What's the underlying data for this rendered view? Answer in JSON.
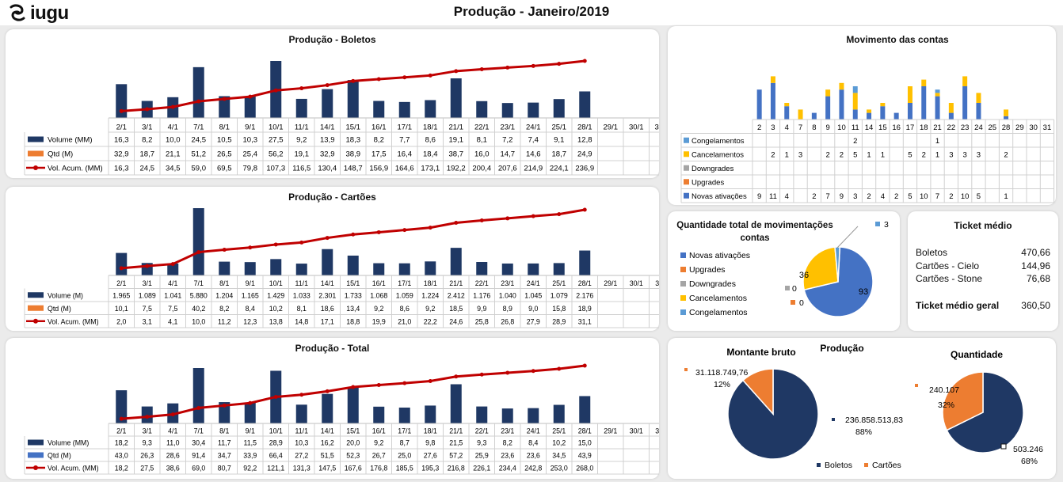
{
  "header": {
    "logo_text": "iugu",
    "title": "Produção - Janeiro/2019"
  },
  "colors": {
    "navy": "#1f3864",
    "orange": "#ed7d31",
    "red": "#c00000",
    "blue": "#4472c4",
    "gold": "#ffc000",
    "gray": "#a5a5a5",
    "sky": "#5b9bd5"
  },
  "dates": [
    "2/1",
    "3/1",
    "4/1",
    "7/1",
    "8/1",
    "9/1",
    "10/1",
    "11/1",
    "14/1",
    "15/1",
    "16/1",
    "17/1",
    "18/1",
    "21/1",
    "22/1",
    "23/1",
    "24/1",
    "25/1",
    "28/1",
    "29/1",
    "30/1",
    "31/1"
  ],
  "boletos": {
    "title": "Produção - Boletos",
    "row_labels": [
      "Volume (MM)",
      "Qtd (M)",
      "Vol. Acum. (MM)"
    ],
    "rows": [
      [
        "16,3",
        "8,2",
        "10,0",
        "24,5",
        "10,5",
        "10,3",
        "27,5",
        "9,2",
        "13,9",
        "18,3",
        "8,2",
        "7,7",
        "8,6",
        "19,1",
        "8,1",
        "7,2",
        "7,4",
        "9,1",
        "12,8"
      ],
      [
        "32,9",
        "18,7",
        "21,1",
        "51,2",
        "26,5",
        "25,4",
        "56,2",
        "19,1",
        "32,9",
        "38,9",
        "17,5",
        "16,4",
        "18,4",
        "38,7",
        "16,0",
        "14,7",
        "14,6",
        "18,7",
        "24,9"
      ],
      [
        "16,3",
        "24,5",
        "34,5",
        "59,0",
        "69,5",
        "79,8",
        "107,3",
        "116,5",
        "130,4",
        "148,7",
        "156,9",
        "164,6",
        "173,1",
        "192,2",
        "200,4",
        "207,6",
        "214,9",
        "224,1",
        "236,9"
      ]
    ]
  },
  "cartoes": {
    "title": "Produção - Cartões",
    "row_labels": [
      "Volume (M)",
      "Qtd (M)",
      "Vol. Acum. (MM)"
    ],
    "rows": [
      [
        "1.965",
        "1.089",
        "1.041",
        "5.880",
        "1.204",
        "1.165",
        "1.429",
        "1.033",
        "2.301",
        "1.733",
        "1.068",
        "1.059",
        "1.224",
        "2.412",
        "1.176",
        "1.040",
        "1.045",
        "1.079",
        "2.176"
      ],
      [
        "10,1",
        "7,5",
        "7,5",
        "40,2",
        "8,2",
        "8,4",
        "10,2",
        "8,1",
        "18,6",
        "13,4",
        "9,2",
        "8,6",
        "9,2",
        "18,5",
        "9,9",
        "8,9",
        "9,0",
        "15,8",
        "18,9"
      ],
      [
        "2,0",
        "3,1",
        "4,1",
        "10,0",
        "11,2",
        "12,3",
        "13,8",
        "14,8",
        "17,1",
        "18,8",
        "19,9",
        "21,0",
        "22,2",
        "24,6",
        "25,8",
        "26,8",
        "27,9",
        "28,9",
        "31,1"
      ]
    ]
  },
  "total": {
    "title": "Produção - Total",
    "row_labels": [
      "Volume (MM)",
      "Qtd (M)",
      "Vol. Acum. (MM)"
    ],
    "rows": [
      [
        "18,2",
        "9,3",
        "11,0",
        "30,4",
        "11,7",
        "11,5",
        "28,9",
        "10,3",
        "16,2",
        "20,0",
        "9,2",
        "8,7",
        "9,8",
        "21,5",
        "9,3",
        "8,2",
        "8,4",
        "10,2",
        "15,0"
      ],
      [
        "43,0",
        "26,3",
        "28,6",
        "91,4",
        "34,7",
        "33,9",
        "66,4",
        "27,2",
        "51,5",
        "52,3",
        "26,7",
        "25,0",
        "27,6",
        "57,2",
        "25,9",
        "23,6",
        "23,6",
        "34,5",
        "43,9"
      ],
      [
        "18,2",
        "27,5",
        "38,6",
        "69,0",
        "80,7",
        "92,2",
        "121,1",
        "131,3",
        "147,5",
        "167,6",
        "176,8",
        "185,5",
        "195,3",
        "216,8",
        "226,1",
        "234,4",
        "242,8",
        "253,0",
        "268,0"
      ]
    ]
  },
  "movimento": {
    "title": "Movimento das contas",
    "days": [
      "2",
      "3",
      "4",
      "7",
      "8",
      "9",
      "10",
      "11",
      "14",
      "15",
      "16",
      "17",
      "18",
      "21",
      "22",
      "23",
      "24",
      "25",
      "28",
      "29",
      "30",
      "31"
    ],
    "series_labels": [
      "Congelamentos",
      "Cancelamentos",
      "Downgrades",
      "Upgrades",
      "Novas ativações"
    ],
    "table": [
      [
        "",
        "",
        "",
        "",
        "",
        "",
        "",
        "2",
        "",
        "",
        "",
        "",
        "",
        "1",
        "",
        "",
        "",
        "",
        "",
        "",
        "",
        ""
      ],
      [
        "",
        "2",
        "1",
        "3",
        "",
        "2",
        "2",
        "5",
        "1",
        "1",
        "",
        "5",
        "2",
        "1",
        "3",
        "3",
        "3",
        "",
        "2",
        "",
        "",
        ""
      ],
      [
        "",
        "",
        "",
        "",
        "",
        "",
        "",
        "",
        "",
        "",
        "",
        "",
        "",
        "",
        "",
        "",
        "",
        "",
        "",
        "",
        "",
        ""
      ],
      [
        "",
        "",
        "",
        "",
        "",
        "",
        "",
        "",
        "",
        "",
        "",
        "",
        "",
        "",
        "",
        "",
        "",
        "",
        "",
        "",
        "",
        ""
      ],
      [
        "9",
        "11",
        "4",
        "",
        "2",
        "7",
        "9",
        "3",
        "2",
        "4",
        "2",
        "5",
        "10",
        "7",
        "2",
        "10",
        "5",
        "",
        "1",
        "",
        "",
        ""
      ]
    ]
  },
  "chart_data": [
    {
      "type": "bar",
      "title": "Produção - Boletos",
      "categories": [
        "2/1",
        "3/1",
        "4/1",
        "7/1",
        "8/1",
        "9/1",
        "10/1",
        "11/1",
        "14/1",
        "15/1",
        "16/1",
        "17/1",
        "18/1",
        "21/1",
        "22/1",
        "23/1",
        "24/1",
        "25/1",
        "28/1"
      ],
      "series": [
        {
          "name": "Volume (MM)",
          "values": [
            16.3,
            8.2,
            10.0,
            24.5,
            10.5,
            10.3,
            27.5,
            9.2,
            13.9,
            18.3,
            8.2,
            7.7,
            8.6,
            19.1,
            8.1,
            7.2,
            7.4,
            9.1,
            12.8
          ]
        },
        {
          "name": "Vol. Acum. (MM)",
          "values": [
            16.3,
            24.5,
            34.5,
            59.0,
            69.5,
            79.8,
            107.3,
            116.5,
            130.4,
            148.7,
            156.9,
            164.6,
            173.1,
            192.2,
            200.4,
            207.6,
            214.9,
            224.1,
            236.9
          ]
        }
      ]
    },
    {
      "type": "bar",
      "title": "Produção - Cartões",
      "categories": [
        "2/1",
        "3/1",
        "4/1",
        "7/1",
        "8/1",
        "9/1",
        "10/1",
        "11/1",
        "14/1",
        "15/1",
        "16/1",
        "17/1",
        "18/1",
        "21/1",
        "22/1",
        "23/1",
        "24/1",
        "25/1",
        "28/1"
      ],
      "series": [
        {
          "name": "Volume (M)",
          "values": [
            1965,
            1089,
            1041,
            5880,
            1204,
            1165,
            1429,
            1033,
            2301,
            1733,
            1068,
            1059,
            1224,
            2412,
            1176,
            1040,
            1045,
            1079,
            2176
          ]
        },
        {
          "name": "Vol. Acum. (MM)",
          "values": [
            2.0,
            3.1,
            4.1,
            10.0,
            11.2,
            12.3,
            13.8,
            14.8,
            17.1,
            18.8,
            19.9,
            21.0,
            22.2,
            24.6,
            25.8,
            26.8,
            27.9,
            28.9,
            31.1
          ]
        }
      ]
    },
    {
      "type": "bar",
      "title": "Produção - Total",
      "categories": [
        "2/1",
        "3/1",
        "4/1",
        "7/1",
        "8/1",
        "9/1",
        "10/1",
        "11/1",
        "14/1",
        "15/1",
        "16/1",
        "17/1",
        "18/1",
        "21/1",
        "22/1",
        "23/1",
        "24/1",
        "25/1",
        "28/1"
      ],
      "series": [
        {
          "name": "Volume (MM)",
          "values": [
            18.2,
            9.3,
            11.0,
            30.4,
            11.7,
            11.5,
            28.9,
            10.3,
            16.2,
            20.0,
            9.2,
            8.7,
            9.8,
            21.5,
            9.3,
            8.2,
            8.4,
            10.2,
            15.0
          ]
        },
        {
          "name": "Vol. Acum. (MM)",
          "values": [
            18.2,
            27.5,
            38.6,
            69.0,
            80.7,
            92.2,
            121.1,
            131.3,
            147.5,
            167.6,
            176.8,
            185.5,
            195.3,
            216.8,
            226.1,
            234.4,
            242.8,
            253.0,
            268.0
          ]
        }
      ]
    },
    {
      "type": "bar",
      "title": "Movimento das contas",
      "stacked": true,
      "categories": [
        "2",
        "3",
        "4",
        "7",
        "8",
        "9",
        "10",
        "11",
        "14",
        "15",
        "16",
        "17",
        "18",
        "21",
        "22",
        "23",
        "24",
        "25",
        "28",
        "29",
        "30",
        "31"
      ],
      "series": [
        {
          "name": "Novas ativações",
          "values": [
            9,
            11,
            4,
            0,
            2,
            7,
            9,
            3,
            2,
            4,
            2,
            5,
            10,
            7,
            2,
            10,
            5,
            0,
            1,
            0,
            0,
            0
          ]
        },
        {
          "name": "Cancelamentos",
          "values": [
            0,
            2,
            1,
            3,
            0,
            2,
            2,
            5,
            1,
            1,
            0,
            5,
            2,
            1,
            3,
            3,
            3,
            0,
            2,
            0,
            0,
            0
          ]
        },
        {
          "name": "Congelamentos",
          "values": [
            0,
            0,
            0,
            0,
            0,
            0,
            0,
            2,
            0,
            0,
            0,
            0,
            0,
            1,
            0,
            0,
            0,
            0,
            0,
            0,
            0,
            0
          ]
        }
      ]
    },
    {
      "type": "pie",
      "title": "Quantidade total de movimentações contas",
      "categories": [
        "Novas ativações",
        "Upgrades",
        "Downgrades",
        "Cancelamentos",
        "Congelamentos"
      ],
      "values": [
        93,
        0,
        0,
        36,
        3
      ]
    },
    {
      "type": "pie",
      "title": "Montante bruto",
      "categories": [
        "Boletos",
        "Cartões"
      ],
      "values": [
        236858513,
        31118749.76
      ]
    },
    {
      "type": "pie",
      "title": "Quantidade",
      "categories": [
        "Boletos",
        "Cartões"
      ],
      "values": [
        503246,
        240107
      ]
    }
  ],
  "pie_mov": {
    "title": "Quantidade total de movimentações contas",
    "legend": [
      "Novas ativações",
      "Upgrades",
      "Downgrades",
      "Cancelamentos",
      "Congelamentos"
    ],
    "labels": {
      "novas": "93",
      "cancel": "36",
      "cong": "3",
      "down": "0",
      "up": "0"
    }
  },
  "ticket": {
    "title": "Ticket médio",
    "rows": [
      [
        "Boletos",
        "470,66"
      ],
      [
        "Cartões - Cielo",
        "144,96"
      ],
      [
        "Cartões - Stone",
        "76,68"
      ]
    ],
    "total_label": "Ticket médio geral",
    "total_value": "360,50"
  },
  "producao": {
    "title": "Produção",
    "montante_title": "Montante bruto",
    "quantidade_title": "Quantidade",
    "m_cartoes_value": "31.118.749,76",
    "m_cartoes_pct": "12%",
    "m_boletos_value": "236.858.513,83",
    "m_boletos_pct": "88%",
    "q_cartoes_value": "240.107",
    "q_cartoes_pct": "32%",
    "q_boletos_value": "503.246",
    "q_boletos_pct": "68%",
    "legend": [
      "Boletos",
      "Cartões"
    ]
  }
}
